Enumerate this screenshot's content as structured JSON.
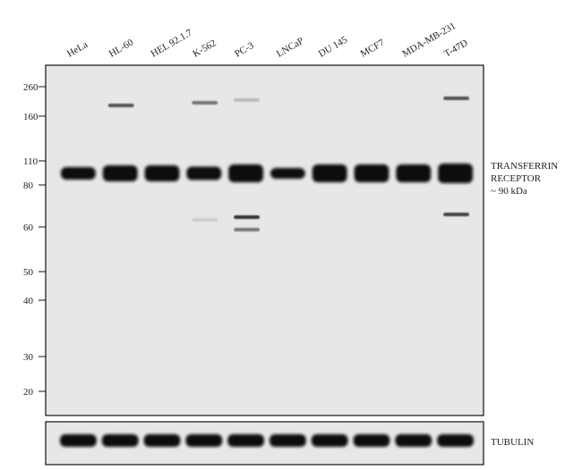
{
  "blot": {
    "lanes": [
      "HeLa",
      "HL-60",
      "HEL 92.1.7",
      "K-562",
      "PC-3",
      "LNCaP",
      "DU 145",
      "MCF7",
      "MDA-MB-231",
      "T-47D"
    ],
    "markers": [
      "260",
      "160",
      "110",
      "80",
      "60",
      "50",
      "40",
      "30",
      "20"
    ],
    "target_label": [
      "TRANSFERRIN",
      "RECEPTOR",
      "~ 90 kDa"
    ],
    "loading_control": "TUBULIN"
  }
}
